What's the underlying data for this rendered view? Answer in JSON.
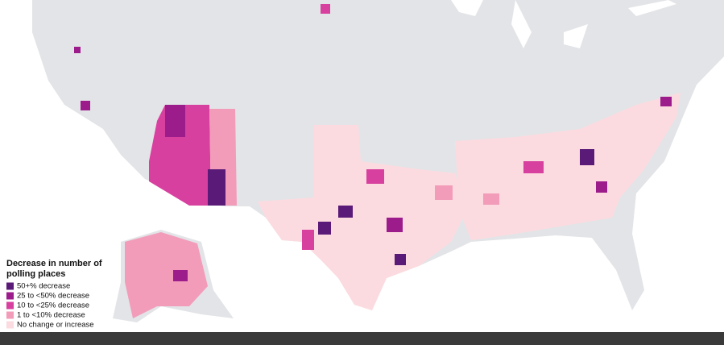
{
  "legend": {
    "title_line1": "Decrease in number of",
    "title_line2": "polling places",
    "items": [
      {
        "label": "50+% decrease",
        "color": "#5a1a78"
      },
      {
        "label": "25 to <50% decrease",
        "color": "#9c1c8c"
      },
      {
        "label": "10 to <25% decrease",
        "color": "#d8409f"
      },
      {
        "label": "1 to <10% decrease",
        "color": "#f29cba"
      },
      {
        "label": "No change or increase",
        "color": "#fcdbe0"
      }
    ]
  }
}
